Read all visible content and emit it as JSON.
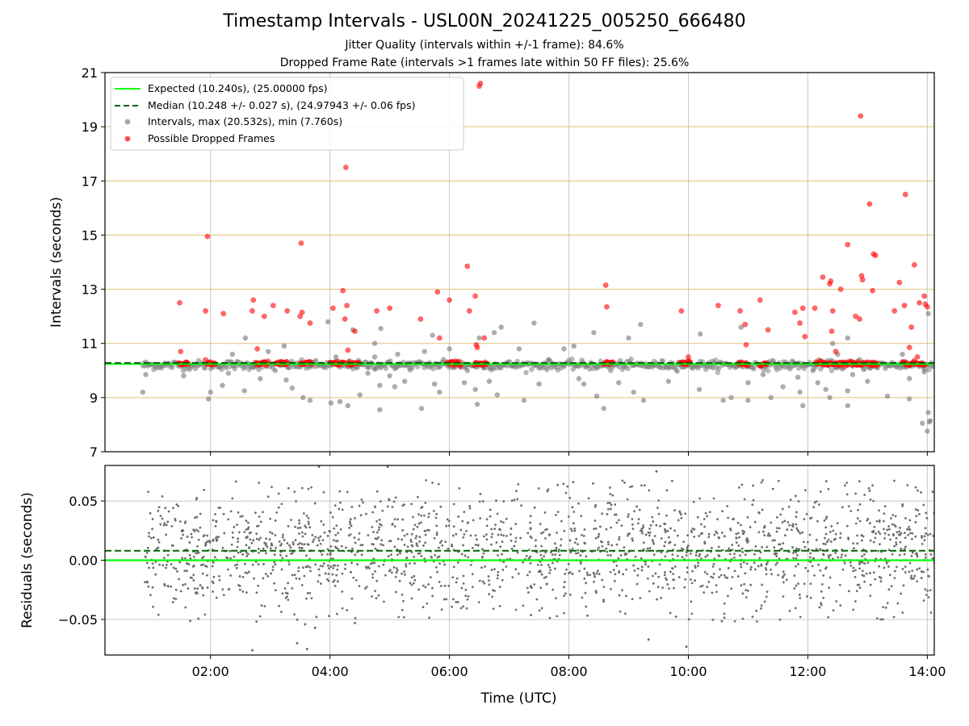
{
  "figure": {
    "title": "Timestamp Intervals - USL00N_20241225_005250_666480",
    "subtitle_1": "Jitter Quality (intervals within +/-1 frame): 84.6%",
    "subtitle_2": "Dropped Frame Rate (intervals >1 frames late within 50 FF files): 25.6%"
  },
  "colors": {
    "expected": "#00ff00",
    "median": "#006400",
    "intervals": "#808080",
    "dropped": "#ff0000",
    "hgrid": "#d4b45a",
    "vgrid": "#c8c8c8"
  },
  "chart_data": [
    {
      "type": "scatter",
      "panel": "intervals",
      "xlabel": "Time (UTC)",
      "ylabel": "Intervals (seconds)",
      "xlim": [
        "00:14",
        "14:07"
      ],
      "ylim": [
        7,
        21
      ],
      "x_ticks": [
        "02:00",
        "04:00",
        "06:00",
        "08:00",
        "10:00",
        "12:00",
        "14:00"
      ],
      "y_ticks": [
        "7",
        "9",
        "11",
        "13",
        "15",
        "17",
        "19",
        "21"
      ],
      "grid": true,
      "legend_position": "top-left",
      "legend": [
        "Expected (10.240s), (25.00000 fps)",
        "Median (10.248 +/- 0.027 s), (24.97943 +/- 0.06 fps)",
        "Intervals, max (20.532s), min (7.760s)",
        "Possible Dropped Frames"
      ],
      "expected": 10.24,
      "median": 10.248,
      "series": [
        {
          "name": "Intervals, max (20.532s), min (7.760s)",
          "points": [
            [
              "00:52",
              9.2
            ],
            [
              "00:55",
              9.85
            ],
            [
              "01:33",
              9.8
            ],
            [
              "01:58",
              8.95
            ],
            [
              "02:00",
              9.2
            ],
            [
              "02:12",
              9.45
            ],
            [
              "02:18",
              9.9
            ],
            [
              "02:22",
              10.6
            ],
            [
              "02:34",
              9.25
            ],
            [
              "02:35",
              11.2
            ],
            [
              "02:43",
              10.15
            ],
            [
              "02:50",
              9.7
            ],
            [
              "02:58",
              10.7
            ],
            [
              "03:05",
              10.0
            ],
            [
              "03:14",
              10.9
            ],
            [
              "03:16",
              9.65
            ],
            [
              "03:22",
              9.35
            ],
            [
              "03:33",
              9.0
            ],
            [
              "03:40",
              8.9
            ],
            [
              "03:58",
              11.8
            ],
            [
              "04:01",
              8.8
            ],
            [
              "04:06",
              10.5
            ],
            [
              "04:10",
              8.85
            ],
            [
              "04:18",
              8.7
            ],
            [
              "04:23",
              11.5
            ],
            [
              "04:30",
              9.1
            ],
            [
              "04:38",
              9.9
            ],
            [
              "04:45",
              10.5
            ],
            [
              "04:45",
              11.0
            ],
            [
              "04:50",
              8.55
            ],
            [
              "04:50",
              9.45
            ],
            [
              "04:51",
              11.55
            ],
            [
              "05:00",
              9.8
            ],
            [
              "05:05",
              9.4
            ],
            [
              "05:08",
              10.6
            ],
            [
              "05:15",
              9.6
            ],
            [
              "05:20",
              10.1
            ],
            [
              "05:32",
              8.6
            ],
            [
              "05:35",
              10.7
            ],
            [
              "05:43",
              11.3
            ],
            [
              "05:45",
              9.5
            ],
            [
              "05:50",
              9.2
            ],
            [
              "05:54",
              10.4
            ],
            [
              "06:00",
              10.8
            ],
            [
              "06:08",
              10.3
            ],
            [
              "06:15",
              9.55
            ],
            [
              "06:18",
              10.0
            ],
            [
              "06:26",
              9.3
            ],
            [
              "06:28",
              8.75
            ],
            [
              "06:30",
              11.2
            ],
            [
              "06:35",
              10.1
            ],
            [
              "06:40",
              9.6
            ],
            [
              "06:45",
              11.4
            ],
            [
              "06:48",
              9.1
            ],
            [
              "06:52",
              11.6
            ],
            [
              "07:05",
              10.2
            ],
            [
              "07:10",
              10.8
            ],
            [
              "07:15",
              8.9
            ],
            [
              "07:25",
              11.75
            ],
            [
              "07:30",
              9.5
            ],
            [
              "07:40",
              10.4
            ],
            [
              "07:55",
              10.8
            ],
            [
              "08:05",
              10.9
            ],
            [
              "08:10",
              9.7
            ],
            [
              "08:15",
              9.5
            ],
            [
              "08:25",
              11.4
            ],
            [
              "08:28",
              9.05
            ],
            [
              "08:35",
              8.6
            ],
            [
              "08:42",
              10.0
            ],
            [
              "08:50",
              9.55
            ],
            [
              "09:00",
              11.2
            ],
            [
              "09:05",
              9.2
            ],
            [
              "09:12",
              11.7
            ],
            [
              "09:15",
              8.9
            ],
            [
              "09:25",
              10.2
            ],
            [
              "09:40",
              9.6
            ],
            [
              "09:50",
              10.3
            ],
            [
              "10:11",
              9.3
            ],
            [
              "10:12",
              11.35
            ],
            [
              "10:25",
              10.1
            ],
            [
              "10:35",
              8.9
            ],
            [
              "10:43",
              9.0
            ],
            [
              "10:53",
              11.6
            ],
            [
              "11:00",
              9.55
            ],
            [
              "11:00",
              8.9
            ],
            [
              "11:15",
              9.85
            ],
            [
              "11:23",
              9.0
            ],
            [
              "11:35",
              9.4
            ],
            [
              "11:45",
              10.3
            ],
            [
              "11:50",
              9.75
            ],
            [
              "11:52",
              9.2
            ],
            [
              "11:55",
              8.7
            ],
            [
              "12:05",
              10.0
            ],
            [
              "12:10",
              9.55
            ],
            [
              "12:18",
              9.3
            ],
            [
              "12:22",
              9.0
            ],
            [
              "12:25",
              11.0
            ],
            [
              "12:30",
              10.6
            ],
            [
              "12:40",
              11.2
            ],
            [
              "12:40",
              8.7
            ],
            [
              "12:40",
              9.25
            ],
            [
              "12:45",
              9.85
            ],
            [
              "12:52",
              10.4
            ],
            [
              "13:00",
              9.6
            ],
            [
              "13:10",
              10.1
            ],
            [
              "13:20",
              9.05
            ],
            [
              "13:35",
              10.6
            ],
            [
              "13:42",
              8.95
            ],
            [
              "13:42",
              9.7
            ],
            [
              "13:48",
              10.3
            ],
            [
              "13:55",
              8.05
            ],
            [
              "13:57",
              9.95
            ],
            [
              "14:00",
              7.76
            ],
            [
              "14:01",
              8.45
            ],
            [
              "14:02",
              8.1
            ],
            [
              "14:03",
              8.15
            ],
            [
              "14:01",
              12.1
            ]
          ]
        },
        {
          "name": "Possible Dropped Frames",
          "points": [
            [
              "01:29",
              12.5
            ],
            [
              "01:30",
              10.7
            ],
            [
              "01:55",
              12.2
            ],
            [
              "01:57",
              14.95
            ],
            [
              "02:13",
              12.1
            ],
            [
              "02:42",
              12.2
            ],
            [
              "02:43",
              12.6
            ],
            [
              "02:47",
              10.8
            ],
            [
              "02:54",
              12.0
            ],
            [
              "03:03",
              12.4
            ],
            [
              "03:17",
              12.2
            ],
            [
              "03:30",
              12.0
            ],
            [
              "03:31",
              14.7
            ],
            [
              "03:32",
              12.15
            ],
            [
              "03:40",
              11.75
            ],
            [
              "04:03",
              12.3
            ],
            [
              "04:13",
              12.95
            ],
            [
              "04:15",
              11.9
            ],
            [
              "04:16",
              17.5
            ],
            [
              "04:17",
              12.4
            ],
            [
              "04:18",
              10.75
            ],
            [
              "04:25",
              11.45
            ],
            [
              "04:47",
              12.2
            ],
            [
              "05:00",
              12.3
            ],
            [
              "05:31",
              11.9
            ],
            [
              "05:48",
              12.9
            ],
            [
              "05:50",
              11.2
            ],
            [
              "06:00",
              12.6
            ],
            [
              "06:18",
              13.85
            ],
            [
              "06:20",
              12.2
            ],
            [
              "06:26",
              12.75
            ],
            [
              "06:27",
              10.95
            ],
            [
              "06:28",
              10.85
            ],
            [
              "06:30",
              20.5
            ],
            [
              "06:31",
              20.6
            ],
            [
              "06:35",
              11.2
            ],
            [
              "08:37",
              13.15
            ],
            [
              "08:38",
              12.35
            ],
            [
              "09:53",
              12.2
            ],
            [
              "10:00",
              10.5
            ],
            [
              "10:30",
              12.4
            ],
            [
              "10:52",
              12.2
            ],
            [
              "10:57",
              11.7
            ],
            [
              "10:58",
              10.95
            ],
            [
              "11:12",
              12.6
            ],
            [
              "11:20",
              11.5
            ],
            [
              "11:47",
              12.15
            ],
            [
              "11:52",
              11.75
            ],
            [
              "11:55",
              12.3
            ],
            [
              "11:57",
              11.25
            ],
            [
              "12:07",
              12.3
            ],
            [
              "12:15",
              13.45
            ],
            [
              "12:22",
              13.2
            ],
            [
              "12:23",
              13.3
            ],
            [
              "12:24",
              11.45
            ],
            [
              "12:25",
              12.2
            ],
            [
              "12:28",
              10.7
            ],
            [
              "12:33",
              13.0
            ],
            [
              "12:40",
              14.65
            ],
            [
              "12:48",
              12.0
            ],
            [
              "12:52",
              11.9
            ],
            [
              "12:53",
              19.4
            ],
            [
              "12:54",
              13.5
            ],
            [
              "12:55",
              13.35
            ],
            [
              "13:02",
              16.15
            ],
            [
              "13:05",
              12.95
            ],
            [
              "13:06",
              14.3
            ],
            [
              "13:08",
              14.25
            ],
            [
              "13:27",
              12.2
            ],
            [
              "13:32",
              13.25
            ],
            [
              "13:37",
              12.4
            ],
            [
              "13:38",
              16.5
            ],
            [
              "13:42",
              10.85
            ],
            [
              "13:44",
              11.6
            ],
            [
              "13:47",
              13.9
            ],
            [
              "13:50",
              10.5
            ],
            [
              "13:52",
              12.5
            ],
            [
              "13:57",
              12.75
            ],
            [
              "13:58",
              12.45
            ],
            [
              "14:00",
              12.35
            ]
          ]
        }
      ]
    },
    {
      "type": "scatter",
      "panel": "residuals",
      "xlabel": "Time (UTC)",
      "ylabel": "Residuals (seconds)",
      "xlim": [
        "00:14",
        "14:07"
      ],
      "ylim": [
        -0.08,
        0.08
      ],
      "x_ticks": [
        "02:00",
        "04:00",
        "06:00",
        "08:00",
        "10:00",
        "12:00",
        "14:00"
      ],
      "y_ticks": [
        "0.05",
        "0.00",
        "−0.05"
      ],
      "grid": true,
      "expected": 0.0,
      "median": 0.008,
      "series": [
        {
          "name": "Residuals",
          "x_range": [
            "00:54",
            "14:07"
          ],
          "points": 1900,
          "spread_sd": 0.025,
          "outliers": [
            [
              "02:42",
              -0.076
            ],
            [
              "03:27",
              -0.07
            ],
            [
              "03:37",
              -0.075
            ],
            [
              "03:35",
              -0.054
            ],
            [
              "03:45",
              -0.057
            ],
            [
              "04:25",
              -0.053
            ],
            [
              "09:20",
              -0.067
            ],
            [
              "09:28",
              0.075
            ],
            [
              "09:58",
              -0.073
            ],
            [
              "03:49",
              0.079
            ],
            [
              "04:58",
              0.079
            ],
            [
              "11:05",
              0.063
            ]
          ]
        }
      ]
    }
  ]
}
